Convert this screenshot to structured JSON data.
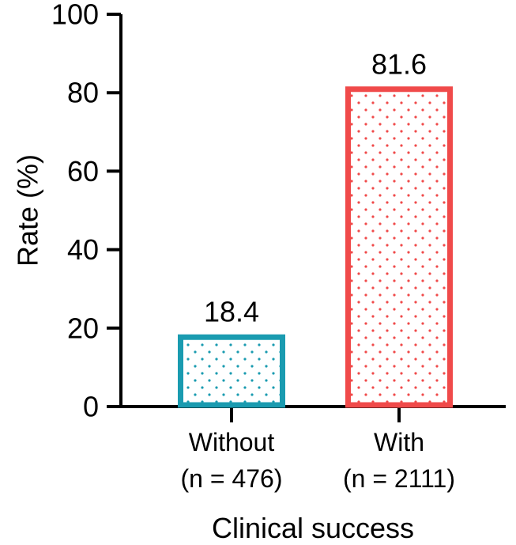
{
  "chart_data": {
    "type": "bar",
    "categories": [
      "Without",
      "With"
    ],
    "category_sublabels": [
      "(n = 476)",
      "(n = 2111)"
    ],
    "values": [
      18.4,
      81.6
    ],
    "data_labels": [
      "18.4",
      "81.6"
    ],
    "colors": [
      "#1a9bb0",
      "#f04a4a"
    ],
    "fill_pattern": "dotted",
    "title": "",
    "xlabel": "Clinical success",
    "ylabel": "Rate (%)",
    "ylim": [
      0,
      100
    ],
    "yticks": [
      0,
      20,
      40,
      60,
      80,
      100
    ],
    "ytick_labels": [
      "0",
      "20",
      "40",
      "60",
      "80",
      "100"
    ],
    "grid": false,
    "legend": "none"
  }
}
